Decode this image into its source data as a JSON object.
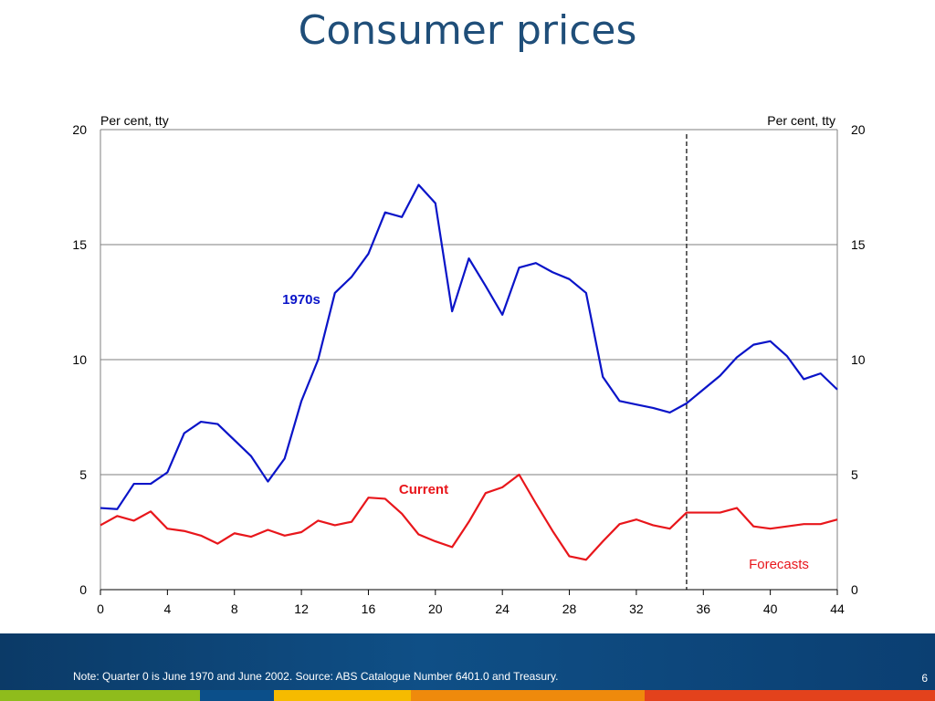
{
  "slide": {
    "title": "Consumer prices",
    "note": "Note: Quarter 0 is June 1970 and June 2002. Source: ABS Catalogue Number 6401.0 and Treasury.",
    "page_number": "6"
  },
  "chart_data": {
    "type": "line",
    "title": "",
    "y_unit_left": "Per cent, tty",
    "y_unit_right": "Per cent, tty",
    "xlim": [
      0,
      44
    ],
    "ylim": [
      0,
      20
    ],
    "x_ticks": [
      0,
      4,
      8,
      12,
      16,
      20,
      24,
      28,
      32,
      36,
      40,
      44
    ],
    "y_ticks": [
      0,
      5,
      10,
      15,
      20
    ],
    "grid": true,
    "forecast_start_x": 35,
    "forecast_label": "Forecasts",
    "x": [
      0,
      1,
      2,
      3,
      4,
      5,
      6,
      7,
      8,
      9,
      10,
      11,
      12,
      13,
      14,
      15,
      16,
      17,
      18,
      19,
      20,
      21,
      22,
      23,
      24,
      25,
      26,
      27,
      28,
      29,
      30,
      31,
      32,
      33,
      34,
      35,
      36,
      37,
      38,
      39,
      40,
      41,
      42,
      43,
      44
    ],
    "series": [
      {
        "name": "1970s",
        "color": "#0a14c8",
        "values": [
          3.55,
          3.5,
          4.6,
          4.6,
          5.1,
          6.8,
          7.3,
          7.2,
          6.5,
          5.8,
          4.7,
          5.7,
          8.2,
          10.0,
          12.9,
          13.6,
          14.6,
          16.4,
          16.2,
          17.6,
          16.8,
          12.1,
          14.4,
          13.2,
          11.95,
          14.0,
          14.2,
          13.8,
          13.5,
          12.9,
          9.25,
          8.2,
          8.05,
          7.9,
          7.7,
          8.1,
          8.7,
          9.3,
          10.1,
          10.65,
          10.8,
          10.15,
          9.15,
          9.4,
          8.7
        ]
      },
      {
        "name": "Current",
        "color": "#e8161b",
        "values": [
          2.8,
          3.2,
          3.0,
          3.4,
          2.65,
          2.55,
          2.35,
          2.0,
          2.45,
          2.3,
          2.6,
          2.35,
          2.5,
          3.0,
          2.8,
          2.95,
          4.0,
          3.95,
          3.3,
          2.4,
          2.1,
          1.85,
          2.95,
          4.2,
          4.45,
          5.0,
          3.75,
          2.55,
          1.45,
          1.3,
          2.1,
          2.85,
          3.05,
          2.8,
          2.65,
          3.35,
          3.35,
          3.35,
          3.55,
          2.75,
          2.65,
          2.75,
          2.85,
          2.85,
          3.05
        ]
      }
    ]
  },
  "colors": {
    "title": "#1f4e79",
    "grid": "#7f7f7f",
    "footer_stripes": [
      "#8fbc1c",
      "#0b4f8a",
      "#f6bb00",
      "#ef8a0c",
      "#e3421c"
    ]
  }
}
